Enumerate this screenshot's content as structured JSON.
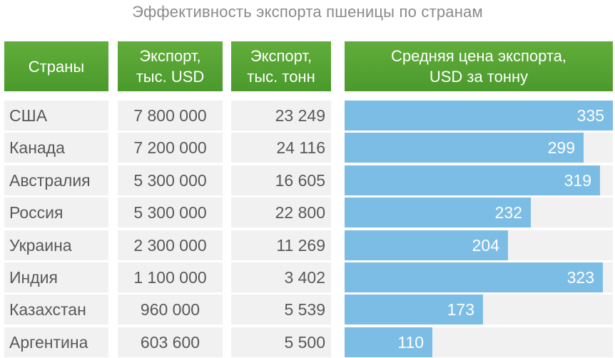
{
  "chart_data": {
    "type": "table",
    "title": "Эффективность экспорта пшеницы по странам",
    "columns": [
      {
        "label": [
          "Страны"
        ]
      },
      {
        "label": [
          "Экспорт,",
          "тыс. USD"
        ]
      },
      {
        "label": [
          "Экспорт,",
          "тыс. тонн"
        ]
      },
      {
        "label": [
          "Средняя цена экспорта,",
          "USD за тонну"
        ]
      }
    ],
    "rows": [
      {
        "country": "США",
        "export_usd": "7 800 000",
        "export_tons": "23 249",
        "price": 335,
        "bar_fraction": 1.0
      },
      {
        "country": "Канада",
        "export_usd": "7 200 000",
        "export_tons": "24 116",
        "price": 299,
        "bar_fraction": 0.892
      },
      {
        "country": "Австралия",
        "export_usd": "5 300 000",
        "export_tons": "16 605",
        "price": 319,
        "bar_fraction": 0.952
      },
      {
        "country": "Россия",
        "export_usd": "5 300 000",
        "export_tons": "22 800",
        "price": 232,
        "bar_fraction": 0.693
      },
      {
        "country": "Украина",
        "export_usd": "2 300 000",
        "export_tons": "11 269",
        "price": 204,
        "bar_fraction": 0.609
      },
      {
        "country": "Индия",
        "export_usd": "1 100 000",
        "export_tons": "3 402",
        "price": 323,
        "bar_fraction": 0.964
      },
      {
        "country": "Казахстан",
        "export_usd": "960 000",
        "export_tons": "5 539",
        "price": 173,
        "bar_fraction": 0.516
      },
      {
        "country": "Аргентина",
        "export_usd": "603 600",
        "export_tons": "5 500",
        "price": 110,
        "bar_fraction": 0.328
      }
    ],
    "bar_color": "#7cbde6",
    "header_color": "#55a233"
  }
}
